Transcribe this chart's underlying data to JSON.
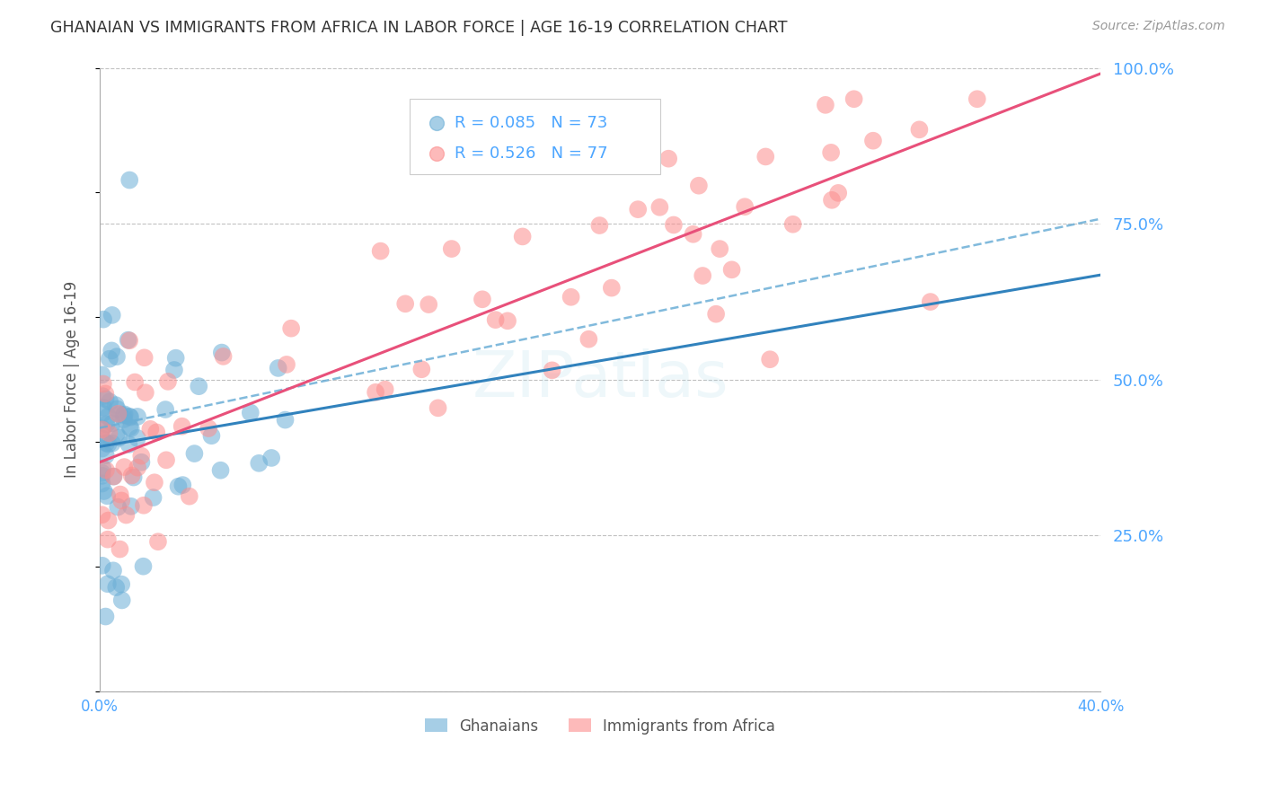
{
  "title": "GHANAIAN VS IMMIGRANTS FROM AFRICA IN LABOR FORCE | AGE 16-19 CORRELATION CHART",
  "source": "Source: ZipAtlas.com",
  "ylabel": "In Labor Force | Age 16-19",
  "xlim": [
    0.0,
    0.4
  ],
  "ylim": [
    0.0,
    1.0
  ],
  "yticks_right": [
    0.0,
    0.25,
    0.5,
    0.75,
    1.0
  ],
  "yticklabels_right": [
    "",
    "25.0%",
    "50.0%",
    "75.0%",
    "100.0%"
  ],
  "legend_r1": "0.085",
  "legend_n1": "73",
  "legend_r2": "0.526",
  "legend_n2": "77",
  "series1_color": "#6baed6",
  "series2_color": "#fc8d8d",
  "line1_color": "#3182bd",
  "line2_color": "#e8507a",
  "dashed_line_color": "#6baed6",
  "right_axis_color": "#4da6ff",
  "title_color": "#333333",
  "background_color": "#ffffff",
  "grid_color": "#bbbbbb",
  "watermark": "ZIPatlas"
}
